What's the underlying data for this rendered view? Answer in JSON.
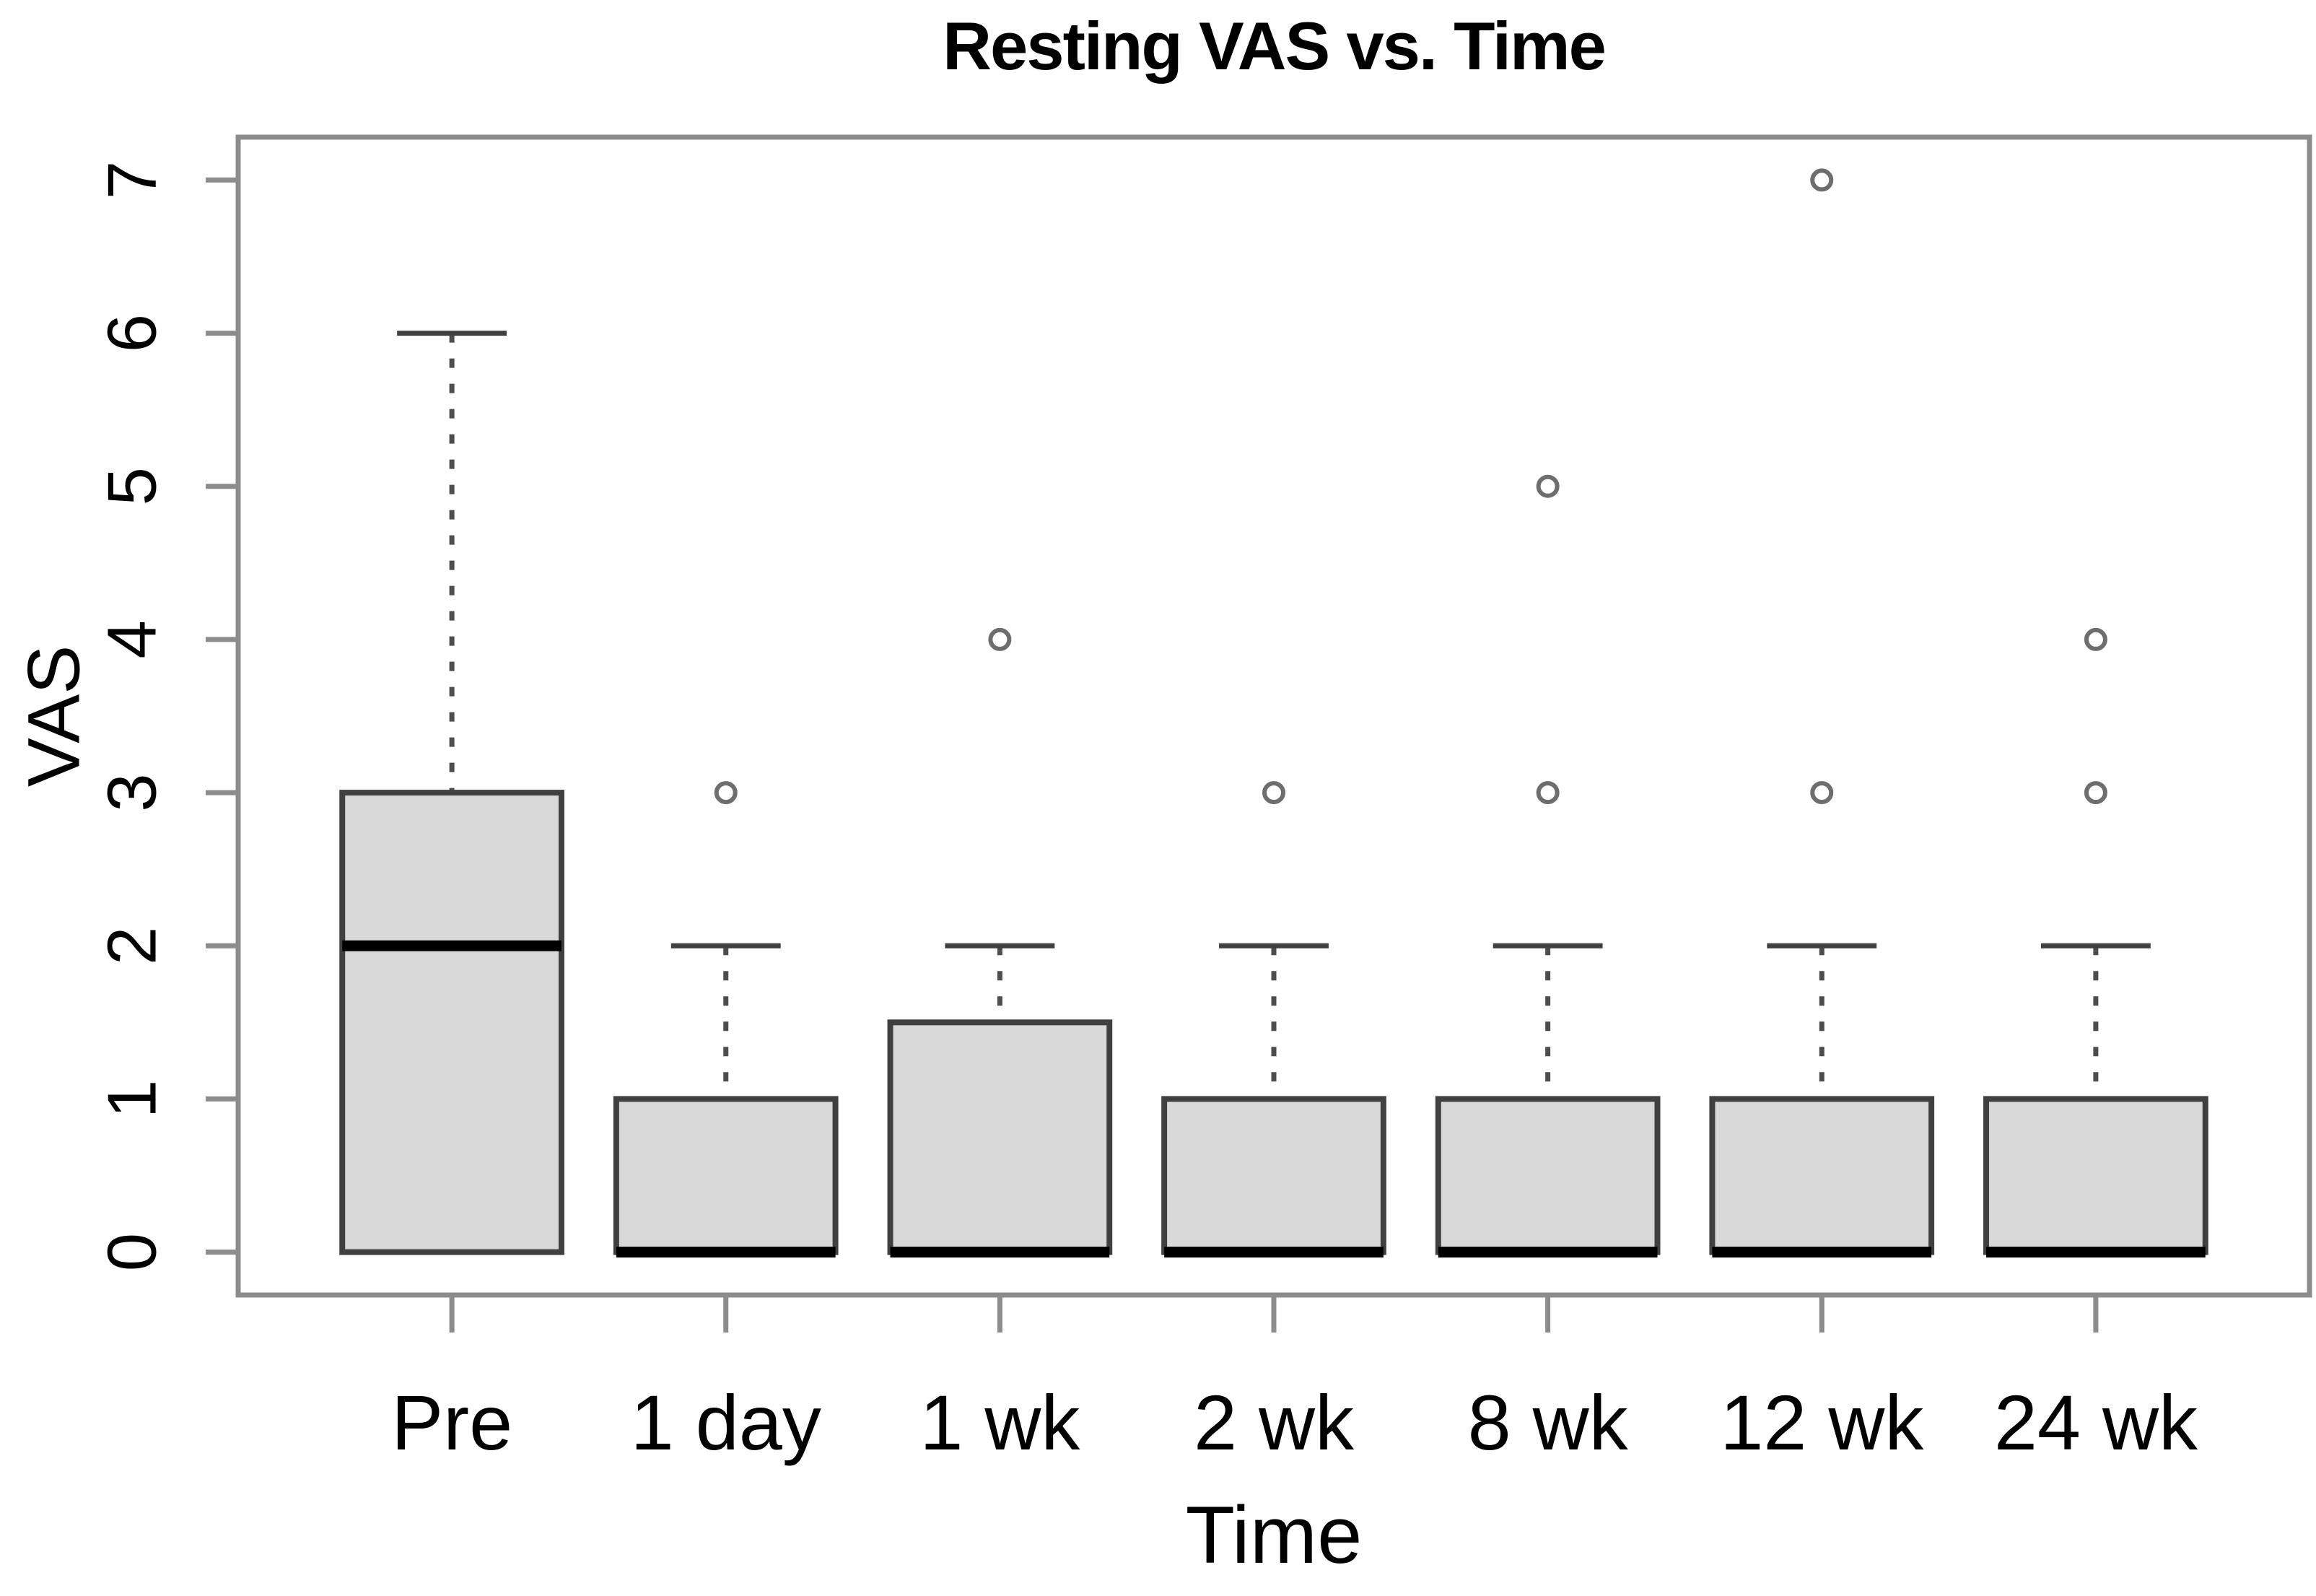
{
  "chart_data": {
    "type": "boxplot",
    "title": "Resting VAS vs. Time",
    "xlabel": "Time",
    "ylabel": "VAS",
    "categories": [
      "Pre",
      "1 day",
      "1 wk",
      "2 wk",
      "8 wk",
      "12 wk",
      "24 wk"
    ],
    "y_ticks": [
      0,
      1,
      2,
      3,
      4,
      5,
      6,
      7
    ],
    "ylim": [
      0,
      7
    ],
    "grid": false,
    "legend": "none",
    "colors": {
      "box_fill": "#d9d9d9",
      "box_stroke": "#404040",
      "median_stroke": "#000000",
      "whisker_stroke": "#4d4d4d",
      "frame_stroke": "#8c8c8c",
      "tick_stroke": "#8c8c8c",
      "outlier_stroke": "#6e6e6e",
      "label_color": "#000000"
    },
    "series": [
      {
        "label": "Pre",
        "whisker_low": 0,
        "q1": 0,
        "median": 2,
        "q3": 3,
        "whisker_high": 6,
        "outliers": []
      },
      {
        "label": "1 day",
        "whisker_low": 0,
        "q1": 0,
        "median": 0,
        "q3": 1,
        "whisker_high": 2,
        "outliers": [
          3
        ]
      },
      {
        "label": "1 wk",
        "whisker_low": 0,
        "q1": 0,
        "median": 0,
        "q3": 1.5,
        "whisker_high": 2,
        "outliers": [
          4
        ]
      },
      {
        "label": "2 wk",
        "whisker_low": 0,
        "q1": 0,
        "median": 0,
        "q3": 1,
        "whisker_high": 2,
        "outliers": [
          3
        ]
      },
      {
        "label": "8 wk",
        "whisker_low": 0,
        "q1": 0,
        "median": 0,
        "q3": 1,
        "whisker_high": 2,
        "outliers": [
          3,
          5
        ]
      },
      {
        "label": "12 wk",
        "whisker_low": 0,
        "q1": 0,
        "median": 0,
        "q3": 1,
        "whisker_high": 2,
        "outliers": [
          3,
          7
        ]
      },
      {
        "label": "24 wk",
        "whisker_low": 0,
        "q1": 0,
        "median": 0,
        "q3": 1,
        "whisker_high": 2,
        "outliers": [
          3,
          4
        ]
      }
    ]
  }
}
